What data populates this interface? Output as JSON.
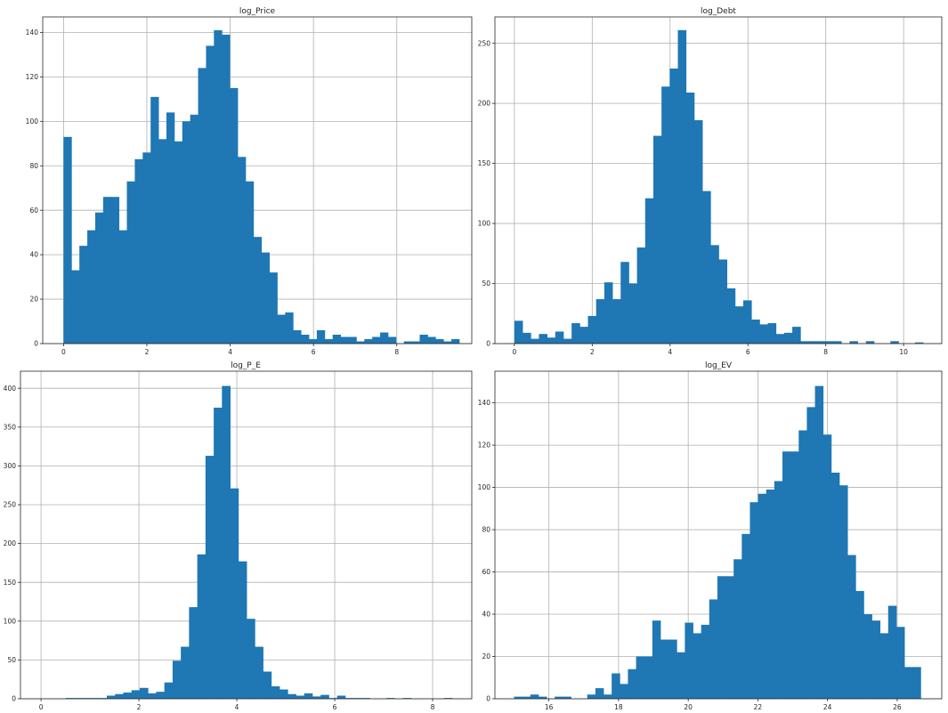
{
  "figure": {
    "bar_color": "#1f77b4"
  },
  "chart_data": [
    {
      "type": "bar",
      "title": "log_Price",
      "xlabel": "",
      "ylabel": "",
      "xlim": [
        -0.5,
        9.8
      ],
      "ylim": [
        0,
        147
      ],
      "grid": true,
      "xticks": [
        0,
        2,
        4,
        6,
        8
      ],
      "yticks": [
        0,
        20,
        40,
        60,
        80,
        100,
        120,
        140
      ],
      "bin_start": 0,
      "bin_width": 0.19,
      "values": [
        93,
        33,
        44,
        51,
        59,
        66,
        66,
        51,
        73,
        83,
        86,
        111,
        92,
        104,
        91,
        100,
        103,
        124,
        134,
        141,
        139,
        115,
        84,
        73,
        48,
        41,
        32,
        13,
        14,
        6,
        4,
        2,
        6,
        2,
        4,
        3,
        3,
        1,
        2,
        3,
        5,
        3,
        0,
        1,
        1,
        4,
        3,
        2,
        1,
        2
      ]
    },
    {
      "type": "bar",
      "title": "log_Debt",
      "xlabel": "",
      "ylabel": "",
      "xlim": [
        -0.5,
        10.98
      ],
      "ylim": [
        0,
        272
      ],
      "grid": true,
      "xticks": [
        0,
        2,
        4,
        6,
        8,
        10
      ],
      "yticks": [
        0,
        50,
        100,
        150,
        200,
        250
      ],
      "bin_start": 0,
      "bin_width": 0.21,
      "values": [
        19,
        9,
        4,
        8,
        5,
        10,
        4,
        17,
        14,
        23,
        37,
        51,
        37,
        68,
        50,
        80,
        121,
        173,
        214,
        229,
        261,
        209,
        186,
        127,
        82,
        70,
        46,
        31,
        36,
        20,
        16,
        17,
        8,
        9,
        14,
        2,
        2,
        2,
        2,
        2,
        0,
        2,
        0,
        2,
        0,
        0,
        2,
        0,
        0,
        1
      ]
    },
    {
      "type": "bar",
      "title": "log_P_E",
      "xlabel": "",
      "ylabel": "",
      "xlim": [
        -0.42,
        8.8
      ],
      "ylim": [
        0,
        422
      ],
      "grid": true,
      "xticks": [
        0,
        2,
        4,
        6,
        8
      ],
      "yticks": [
        0,
        50,
        100,
        150,
        200,
        250,
        300,
        350,
        400
      ],
      "bin_start": 0,
      "bin_width": 0.168,
      "values": [
        0,
        0,
        0,
        1,
        1,
        1,
        1,
        1,
        4,
        6,
        8,
        11,
        14,
        7,
        9,
        21,
        49,
        67,
        118,
        186,
        313,
        375,
        403,
        271,
        177,
        103,
        67,
        35,
        16,
        12,
        6,
        4,
        7,
        3,
        5,
        1,
        4,
        1,
        1,
        1,
        0,
        0,
        1,
        0,
        1,
        0,
        0,
        0,
        0,
        1
      ]
    },
    {
      "type": "bar",
      "title": "log_EV",
      "xlabel": "",
      "ylabel": "",
      "xlim": [
        14.45,
        27.28
      ],
      "ylim": [
        0,
        155
      ],
      "grid": true,
      "xticks": [
        16,
        18,
        20,
        22,
        24,
        26
      ],
      "yticks": [
        0,
        20,
        40,
        60,
        80,
        100,
        120,
        140
      ],
      "bin_start": 15.0,
      "bin_width": 0.2335,
      "values": [
        1,
        1,
        2,
        1,
        0,
        1,
        1,
        0,
        0,
        2,
        5,
        2,
        12,
        7,
        14,
        20,
        20,
        37,
        28,
        28,
        22,
        36,
        31,
        35,
        47,
        58,
        58,
        66,
        78,
        93,
        97,
        99,
        103,
        117,
        117,
        127,
        138,
        148,
        125,
        107,
        101,
        68,
        51,
        40,
        37,
        31,
        44,
        34,
        15,
        15
      ]
    }
  ]
}
